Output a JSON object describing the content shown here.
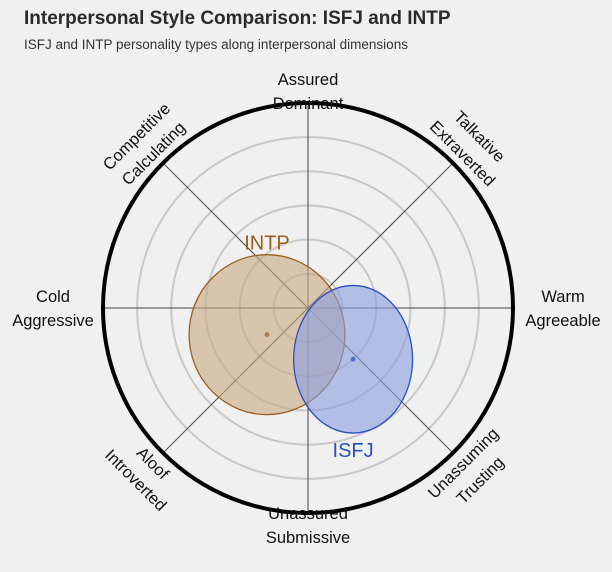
{
  "title": "Interpersonal Style Comparison: ISFJ and INTP",
  "subtitle": "ISFJ and INTP personality types along interpersonal dimensions",
  "axes": [
    {
      "angle": 90,
      "lines": [
        "Assured",
        "Dominant"
      ]
    },
    {
      "angle": 45,
      "lines": [
        "Talkative",
        "Extraverted"
      ]
    },
    {
      "angle": 0,
      "lines": [
        "Warm",
        "Agreeable"
      ]
    },
    {
      "angle": -45,
      "lines": [
        "Unassuming",
        "Trusting"
      ]
    },
    {
      "angle": -90,
      "lines": [
        "Unassured",
        "Submissive"
      ]
    },
    {
      "angle": -135,
      "lines": [
        "Aloof",
        "Introverted"
      ]
    },
    {
      "angle": 180,
      "lines": [
        "Cold",
        "Aggressive"
      ]
    },
    {
      "angle": 135,
      "lines": [
        "Competitive",
        "Calculating"
      ]
    }
  ],
  "chart_data": {
    "type": "scatter",
    "grid": true,
    "rings": 6,
    "series": [
      {
        "name": "INTP",
        "x": -0.2,
        "y": -0.13,
        "spread_x": 0.38,
        "spread_y": 0.39,
        "color": "#9a5f1e",
        "fill": "#c8a882"
      },
      {
        "name": "ISFJ",
        "x": 0.22,
        "y": -0.25,
        "spread_x": 0.29,
        "spread_y": 0.36,
        "color": "#2a4fc0",
        "fill": "#8b9de0"
      }
    ]
  }
}
